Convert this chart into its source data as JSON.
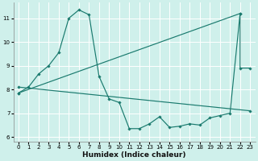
{
  "xlabel": "Humidex (Indice chaleur)",
  "bg_color": "#cff0eb",
  "line_color": "#1a7a6e",
  "grid_color": "#ffffff",
  "xlim": [
    -0.5,
    23.5
  ],
  "ylim": [
    5.8,
    11.65
  ],
  "xticks": [
    0,
    1,
    2,
    3,
    4,
    5,
    6,
    7,
    8,
    9,
    10,
    11,
    12,
    13,
    14,
    15,
    16,
    17,
    18,
    19,
    20,
    21,
    22,
    23
  ],
  "yticks": [
    6,
    7,
    8,
    9,
    10,
    11
  ],
  "line1_x": [
    0,
    1,
    2,
    3,
    4,
    5,
    6,
    7,
    8,
    9,
    10,
    11,
    12,
    13,
    14,
    15,
    16,
    17,
    18,
    19,
    20,
    21,
    22,
    22,
    23
  ],
  "line1_y": [
    7.85,
    8.1,
    8.65,
    9.0,
    9.55,
    11.0,
    11.35,
    11.15,
    8.55,
    7.6,
    7.45,
    6.35,
    6.35,
    6.55,
    6.85,
    6.4,
    6.45,
    6.55,
    6.5,
    6.8,
    6.9,
    7.0,
    11.2,
    8.9,
    8.9
  ],
  "line2_x": [
    0,
    22
  ],
  "line2_y": [
    7.85,
    11.2
  ],
  "line3_x": [
    0,
    23
  ],
  "line3_y": [
    8.1,
    7.1
  ]
}
